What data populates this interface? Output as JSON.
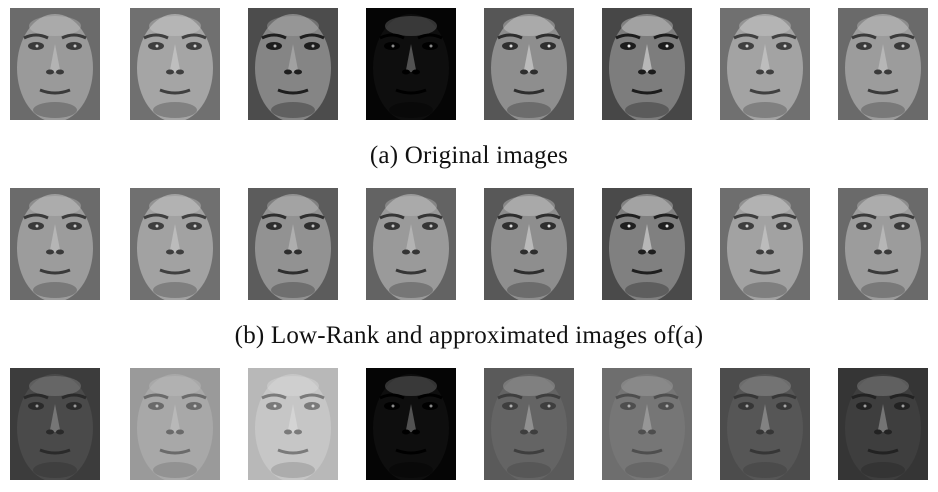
{
  "figure": {
    "caption_a": "(a) Original images",
    "caption_b": "(b) Low-Rank and approximated images of(a)"
  },
  "rows": [
    {
      "id": "original",
      "images": [
        {
          "bg": "#6b6b6b",
          "face": "#9a9a9a",
          "shade": "#3a3a3a",
          "light": "#c8c8c8"
        },
        {
          "bg": "#707070",
          "face": "#a5a5a5",
          "shade": "#3f3f3f",
          "light": "#d4d4d4"
        },
        {
          "bg": "#4c4c4c",
          "face": "#858585",
          "shade": "#1e1e1e",
          "light": "#b8b8b8"
        },
        {
          "bg": "#050505",
          "face": "#0e0e0e",
          "shade": "#000000",
          "light": "#8a8a8a"
        },
        {
          "bg": "#565656",
          "face": "#8e8e8e",
          "shade": "#2e2e2e",
          "light": "#e0e0e0"
        },
        {
          "bg": "#474747",
          "face": "#7d7d7d",
          "shade": "#1c1c1c",
          "light": "#e8e8e8"
        },
        {
          "bg": "#707070",
          "face": "#a3a3a3",
          "shade": "#404040",
          "light": "#d4d4d4"
        },
        {
          "bg": "#6a6a6a",
          "face": "#9c9c9c",
          "shade": "#3a3a3a",
          "light": "#cccccc"
        }
      ]
    },
    {
      "id": "low-rank",
      "images": [
        {
          "bg": "#6b6b6b",
          "face": "#9c9c9c",
          "shade": "#3a3a3a",
          "light": "#cacaca"
        },
        {
          "bg": "#707070",
          "face": "#a2a2a2",
          "shade": "#3f3f3f",
          "light": "#d0d0d0"
        },
        {
          "bg": "#5c5c5c",
          "face": "#929292",
          "shade": "#2e2e2e",
          "light": "#c4c4c4"
        },
        {
          "bg": "#636363",
          "face": "#9a9a9a",
          "shade": "#353535",
          "light": "#c8c8c8"
        },
        {
          "bg": "#585858",
          "face": "#8e8e8e",
          "shade": "#2e2e2e",
          "light": "#dedede"
        },
        {
          "bg": "#4a4a4a",
          "face": "#808080",
          "shade": "#1f1f1f",
          "light": "#e4e4e4"
        },
        {
          "bg": "#6e6e6e",
          "face": "#a2a2a2",
          "shade": "#3e3e3e",
          "light": "#d2d2d2"
        },
        {
          "bg": "#6a6a6a",
          "face": "#9c9c9c",
          "shade": "#3a3a3a",
          "light": "#cccccc"
        }
      ]
    },
    {
      "id": "sparse-error",
      "images": [
        {
          "bg": "#3c3c3c",
          "face": "#4a4a4a",
          "shade": "#2a2a2a",
          "light": "#9a9a9a"
        },
        {
          "bg": "#9a9a9a",
          "face": "#a8a8a8",
          "shade": "#6a6a6a",
          "light": "#c4c4c4"
        },
        {
          "bg": "#b8b8b8",
          "face": "#c6c6c6",
          "shade": "#7a7a7a",
          "light": "#e0e0e0"
        },
        {
          "bg": "#050505",
          "face": "#0e0e0e",
          "shade": "#000000",
          "light": "#8a8a8a"
        },
        {
          "bg": "#5a5a5a",
          "face": "#646464",
          "shade": "#3e3e3e",
          "light": "#b4b4b4"
        },
        {
          "bg": "#6e6e6e",
          "face": "#767676",
          "shade": "#4e4e4e",
          "light": "#b0b0b0"
        },
        {
          "bg": "#4c4c4c",
          "face": "#565656",
          "shade": "#363636",
          "light": "#a8a8a8"
        },
        {
          "bg": "#353535",
          "face": "#3e3e3e",
          "shade": "#222222",
          "light": "#a0a0a0"
        }
      ]
    }
  ]
}
